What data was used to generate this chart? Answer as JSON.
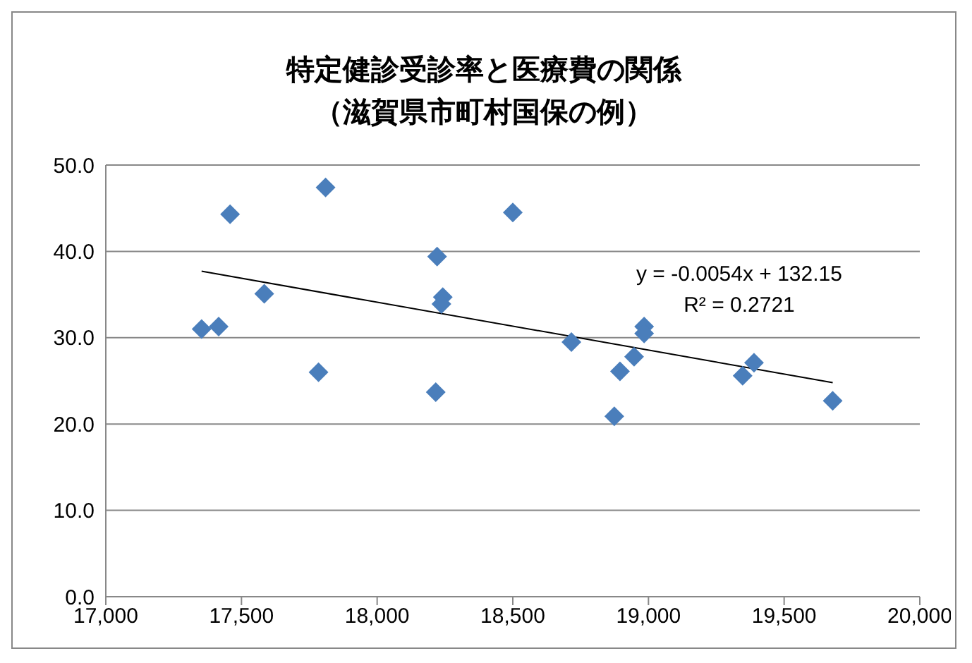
{
  "chart_data": {
    "type": "scatter",
    "title": "特定健診受診率と医療費の関係",
    "subtitle": "（滋賀県市町村国保の例）",
    "annotations": [
      "y = -0.0054x + 132.15",
      "R² = 0.2721"
    ],
    "xlim": [
      17000,
      20000
    ],
    "xticks": [
      {
        "value": 17000,
        "label": "17,000"
      },
      {
        "value": 17500,
        "label": "17,500"
      },
      {
        "value": 18000,
        "label": "18,000"
      },
      {
        "value": 18500,
        "label": "18,500"
      },
      {
        "value": 19000,
        "label": "19,000"
      },
      {
        "value": 19500,
        "label": "19,500"
      },
      {
        "value": 20000,
        "label": "20,000"
      }
    ],
    "ylim": [
      0,
      50
    ],
    "yticks": [
      {
        "value": 0,
        "label": "0.0"
      },
      {
        "value": 10,
        "label": "10.0"
      },
      {
        "value": 20,
        "label": "20.0"
      },
      {
        "value": 30,
        "label": "30.0"
      },
      {
        "value": 40,
        "label": "40.0"
      },
      {
        "value": 50,
        "label": "50.0"
      }
    ],
    "grid": "y",
    "series": [
      {
        "color": "#4a7ebb",
        "marker": "diamond",
        "x": [
          17353,
          17416,
          17458,
          17584,
          17784,
          17810,
          18216,
          18221,
          18242,
          18237,
          18500,
          18716,
          18895,
          18874,
          18947,
          18984,
          18984,
          19347,
          19389,
          19679
        ],
        "values": [
          31.0,
          31.3,
          44.3,
          35.1,
          26.0,
          47.4,
          23.7,
          39.4,
          34.7,
          33.9,
          44.5,
          29.5,
          26.1,
          20.9,
          27.8,
          31.3,
          30.5,
          25.6,
          27.1,
          22.7
        ]
      },
      {
        "type": "line",
        "color": "#000000",
        "marker": "none",
        "line_style": "solid",
        "x": [
          17353,
          19679
        ],
        "values": [
          37.7,
          24.8
        ]
      }
    ]
  }
}
